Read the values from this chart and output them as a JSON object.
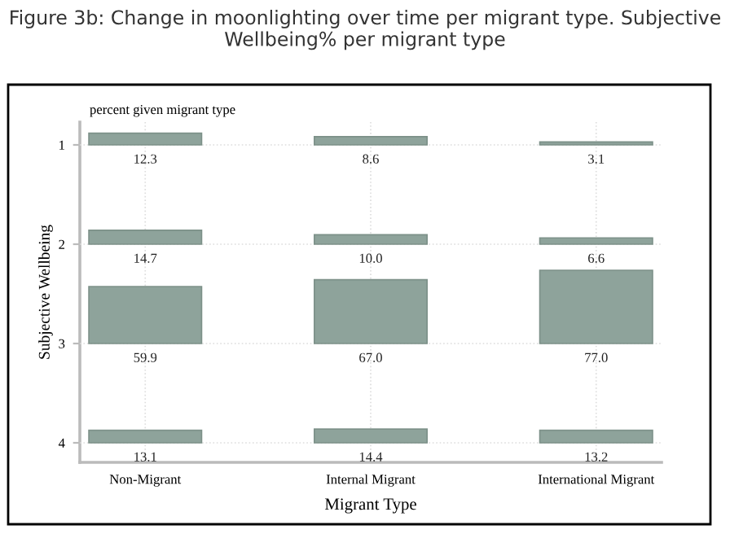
{
  "chart_data": [
    {
      "type": "bar",
      "title": "Figure 3b: Change in moonlighting over time per migrant type. Subjective Wellbeing% per migrant type",
      "subtitle": "percent given migrant type",
      "annotations": [
        "Subjective Wellbeing"
      ],
      "ylabel": "1",
      "categories": [
        null,
        null,
        null
      ],
      "values": [
        12.3,
        8.6,
        3.1
      ],
      "value_labels": [
        "12.3",
        "8.6",
        "3.1"
      ],
      "color": "#8ea39b",
      "grid": true,
      "tick_labels": "y"
    },
    {
      "type": "bar",
      "ylabel": "2",
      "categories": [
        null,
        null,
        null
      ],
      "values": [
        14.7,
        10.0,
        6.6
      ],
      "value_labels": [
        "14.7",
        "10.0",
        "6.6"
      ],
      "color": "#8ea39b",
      "grid": true,
      "tick_labels": "y"
    },
    {
      "type": "bar",
      "ylabel": "3",
      "categories": [
        null,
        null,
        null
      ],
      "values": [
        59.9,
        67.0,
        77.0
      ],
      "value_labels": [
        "59.9",
        "67.0",
        "77.0"
      ],
      "color": "#8ea39b",
      "grid": true,
      "tick_labels": "y"
    },
    {
      "type": "bar",
      "ylabel": "4",
      "xlabel": "Migrant Type",
      "categories": [
        "Non-Migrant",
        "Internal Migrant",
        "International Migrant"
      ],
      "values": [
        13.1,
        14.4,
        13.2
      ],
      "value_labels": [
        "13.1",
        "14.4",
        "13.2"
      ],
      "color": "#8ea39b",
      "grid": true
    }
  ]
}
